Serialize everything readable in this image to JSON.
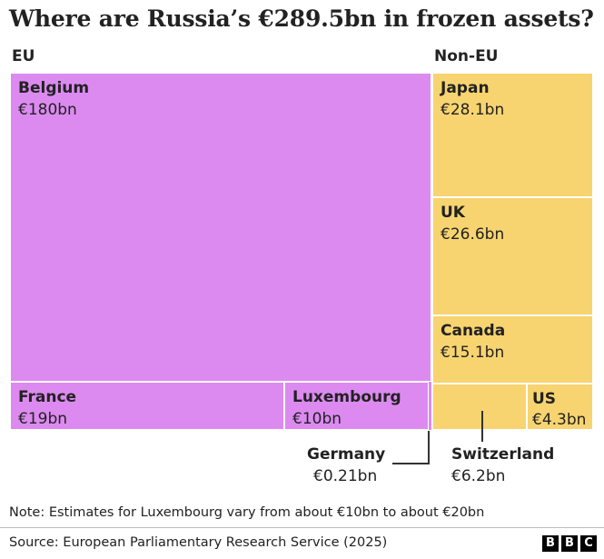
{
  "chart_data": {
    "type": "treemap",
    "title": "Where are Russia’s €289.5bn in frozen assets?",
    "groups": [
      {
        "name": "EU",
        "items": [
          {
            "name": "Belgium",
            "value_label": "€180bn",
            "value": 180
          },
          {
            "name": "France",
            "value_label": "€19bn",
            "value": 19
          },
          {
            "name": "Luxembourg",
            "value_label": "€10bn",
            "value": 10
          },
          {
            "name": "Germany",
            "value_label": "€0.21bn",
            "value": 0.21
          }
        ]
      },
      {
        "name": "Non-EU",
        "items": [
          {
            "name": "Japan",
            "value_label": "€28.1bn",
            "value": 28.1
          },
          {
            "name": "UK",
            "value_label": "€26.6bn",
            "value": 26.6
          },
          {
            "name": "Canada",
            "value_label": "€15.1bn",
            "value": 15.1
          },
          {
            "name": "Switzerland",
            "value_label": "€6.2bn",
            "value": 6.2
          },
          {
            "name": "US",
            "value_label": "€4.3bn",
            "value": 4.3
          }
        ]
      }
    ],
    "note": "Note: Estimates for Luxembourg vary from about €10bn to about €20bn",
    "source": "Source: European Parliamentary Research Service (2025)"
  },
  "colors": {
    "eu": "#dc8af0",
    "non_eu": "#f7d470",
    "border": "#ffffff",
    "text": "#222222"
  },
  "branding": {
    "logo_letters": [
      "B",
      "B",
      "C"
    ]
  }
}
